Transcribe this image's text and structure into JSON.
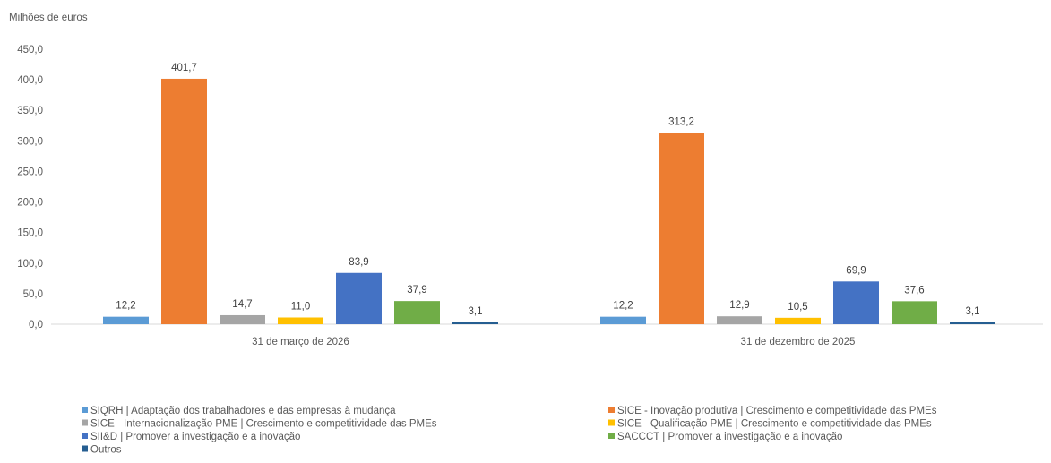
{
  "chart_data": {
    "type": "bar",
    "ylabel": "Milhões de euros",
    "ylim": [
      0,
      450
    ],
    "ytick_labels": [
      "0,0",
      "50,0",
      "100,0",
      "150,0",
      "200,0",
      "250,0",
      "300,0",
      "350,0",
      "400,0",
      "450,0"
    ],
    "categories": [
      "31 de março de 2026",
      "31 de dezembro de 2025"
    ],
    "series": [
      {
        "name": "SIQRH  | Adaptação dos trabalhadores e das empresas à mudança",
        "color": "#5B9BD5",
        "values": [
          12.2,
          12.2
        ],
        "labels": [
          "12,2",
          "12,2"
        ]
      },
      {
        "name": "SICE - Inovação produtiva | Crescimento e competitividade das PMEs",
        "color": "#ED7D31",
        "values": [
          401.7,
          313.2
        ],
        "labels": [
          "401,7",
          "313,2"
        ]
      },
      {
        "name": "SICE - Internacionalização PME | Crescimento e competitividade das PMEs",
        "color": "#A5A5A5",
        "values": [
          14.7,
          12.9
        ],
        "labels": [
          "14,7",
          "12,9"
        ]
      },
      {
        "name": "SICE - Qualificação PME | Crescimento e competitividade das PMEs",
        "color": "#FFC000",
        "values": [
          11.0,
          10.5
        ],
        "labels": [
          "11,0",
          "10,5"
        ]
      },
      {
        "name": "SII&D | Promover a investigação e a inovação",
        "color": "#4472C4",
        "values": [
          83.9,
          69.9
        ],
        "labels": [
          "83,9",
          "69,9"
        ]
      },
      {
        "name": "SACCCT | Promover a investigação e a inovação",
        "color": "#70AD47",
        "values": [
          37.9,
          37.6
        ],
        "labels": [
          "37,9",
          "37,6"
        ]
      },
      {
        "name": "Outros",
        "color": "#255E91",
        "values": [
          3.1,
          3.1
        ],
        "labels": [
          "3,1",
          "3,1"
        ]
      }
    ],
    "grid": false,
    "legend": "bottom"
  }
}
